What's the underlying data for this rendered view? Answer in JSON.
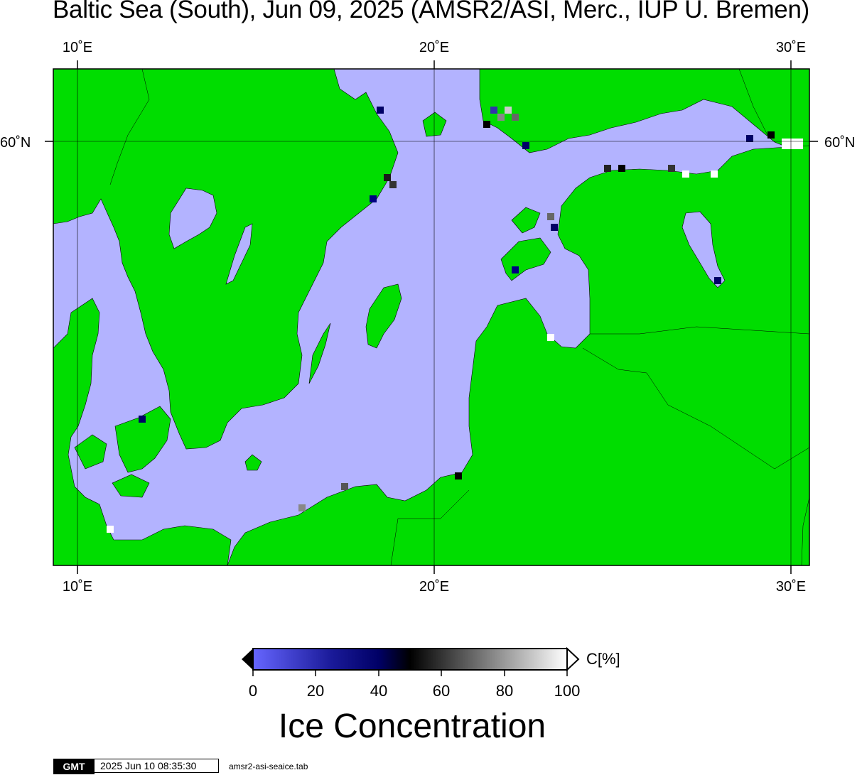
{
  "title": "Baltic Sea (South), Jun 09, 2025 (AMSR2/ASI, Merc., IUP U. Bremen)",
  "map": {
    "lon_ticks": [
      "10˚E",
      "20˚E",
      "30˚E"
    ],
    "lat_ticks": [
      "60˚N"
    ],
    "lon_range": [
      9.3,
      30.5
    ],
    "colors": {
      "land": "#00dd00",
      "water": "#b3b3ff",
      "border": "#000000",
      "ice_extreme": "#ffffff",
      "land_flag": "#808080"
    }
  },
  "legend": {
    "title": "Ice Concentration",
    "unit": "C[%]",
    "ticks": [
      "0",
      "20",
      "40",
      "60",
      "80",
      "100"
    ],
    "range": [
      0,
      100
    ],
    "colormap": [
      "#6666ff",
      "#000066",
      "#000000",
      "#808080",
      "#ffffff"
    ]
  },
  "footer": {
    "logo": "GMT",
    "timestamp": "2025 Jun 10 08:35:30",
    "filename": "amsr2-asi-seaice.tab"
  }
}
